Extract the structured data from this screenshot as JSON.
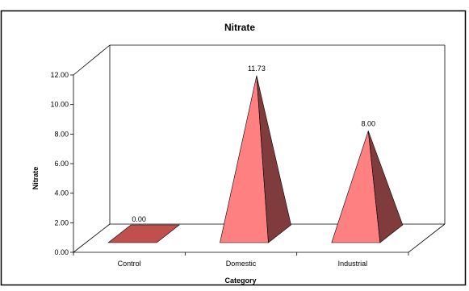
{
  "chart_data": {
    "type": "bar",
    "style": "3d-pyramid",
    "title": "Nitrate",
    "xlabel": "Category",
    "ylabel": "Nitrate",
    "categories": [
      "Control",
      "Domestic",
      "Industrial"
    ],
    "values": [
      0.0,
      11.73,
      8.0
    ],
    "data_labels": [
      "0.00",
      "11.73",
      "8.00"
    ],
    "ylim": [
      0,
      12
    ],
    "yticks": [
      "0.00",
      "2.00",
      "4.00",
      "6.00",
      "8.00",
      "10.00",
      "12.00"
    ],
    "grid": false,
    "legend": "none",
    "colors": {
      "pyramid_front": "#ff8080",
      "pyramid_side": "#803c3c",
      "pyramid_zero_top": "#c0504d",
      "frame": "#000000",
      "background": "#ffffff"
    }
  }
}
